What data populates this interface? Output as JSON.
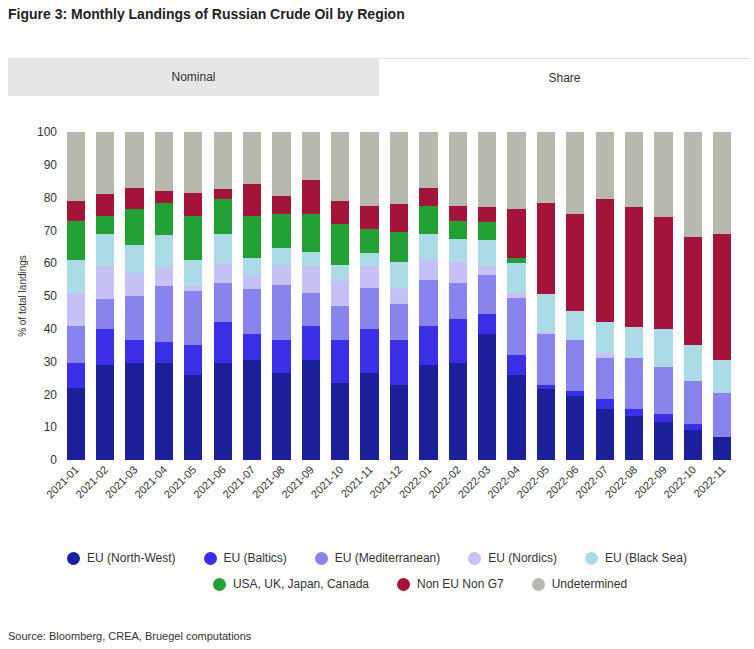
{
  "chart_data": {
    "type": "bar",
    "title": "Figure 3: Monthly Landings of Russian Crude Oil by Region",
    "tabs": [
      "Nominal",
      "Share"
    ],
    "y_label": "% of total landings",
    "source": "Source:  Bloomberg, CREA, Bruegel computations",
    "stacked": true,
    "grid": false,
    "ylim": [
      0,
      100
    ],
    "yticks": [
      0,
      10,
      20,
      30,
      40,
      50,
      60,
      70,
      80,
      90,
      100
    ],
    "categories": [
      "2021-01",
      "2021-02",
      "2021-03",
      "2021-04",
      "2021-05",
      "2021-06",
      "2021-07",
      "2021-08",
      "2021-09",
      "2021-10",
      "2021-11",
      "2021-12",
      "2022-01",
      "2022-02",
      "2022-03",
      "2022-04",
      "2022-05",
      "2022-06",
      "2022-07",
      "2022-08",
      "2022-09",
      "2022-10",
      "2022-11"
    ],
    "series": [
      {
        "name": "EU (North-West)",
        "color": "#1c1f9a",
        "values": [
          22,
          29,
          29.5,
          29.5,
          26,
          29.5,
          30.5,
          26.5,
          30.5,
          23.5,
          26.5,
          23,
          29,
          29.5,
          38.5,
          26,
          21.5,
          19.5,
          15.5,
          13.5,
          11.5,
          9,
          7
        ]
      },
      {
        "name": "EU (Baltics)",
        "color": "#3a2fe6",
        "values": [
          7.5,
          11,
          7,
          6.5,
          9,
          12.5,
          8,
          10,
          10.5,
          13,
          13.5,
          13.5,
          12,
          13.5,
          6,
          6,
          1.5,
          1.5,
          3,
          2,
          2.5,
          2,
          0
        ]
      },
      {
        "name": "EU (Mediterranean)",
        "color": "#8983ee",
        "values": [
          11.5,
          9,
          13.5,
          17,
          16.5,
          12,
          13.5,
          17,
          10,
          10.5,
          12.5,
          11,
          14,
          11,
          12,
          17.5,
          15.5,
          15.5,
          12.5,
          15.5,
          14.5,
          13,
          13.5
        ]
      },
      {
        "name": "EU (Nordics)",
        "color": "#c6c2f5",
        "values": [
          10,
          10,
          7,
          5.5,
          1.5,
          6,
          4,
          6,
          8,
          7.5,
          6.5,
          4.5,
          6,
          6.5,
          2.5,
          1.5,
          0.5,
          0.5,
          1.5,
          0,
          0,
          0,
          0
        ]
      },
      {
        "name": "EU (Black Sea)",
        "color": "#acdbe8",
        "values": [
          10,
          10,
          8.5,
          10,
          8,
          9,
          5.5,
          5,
          4.5,
          5,
          4,
          8.5,
          8,
          7,
          8,
          9,
          11.5,
          8.5,
          9.5,
          9.5,
          11.5,
          11,
          10
        ]
      },
      {
        "name": "USA, UK, Japan, Canada",
        "color": "#22a033",
        "values": [
          12,
          5.5,
          11,
          10,
          13.5,
          10.5,
          13,
          10.5,
          11.5,
          12.5,
          7.5,
          9,
          8.5,
          5.5,
          5.5,
          1.5,
          0,
          0,
          0,
          0,
          0,
          0,
          0
        ]
      },
      {
        "name": "Non EU Non G7",
        "color": "#a3133a",
        "values": [
          6,
          6.5,
          6.5,
          3.5,
          7,
          3,
          9.5,
          5.5,
          10.5,
          7,
          7,
          8.5,
          5.5,
          4.5,
          4.5,
          15,
          28,
          29.5,
          37.5,
          36.5,
          34,
          33,
          38.5
        ]
      },
      {
        "name": "Undetermined",
        "color": "#b7b8ae",
        "values": [
          21,
          19,
          17,
          18,
          18.5,
          17.5,
          16,
          19.5,
          14.5,
          21,
          22.5,
          22,
          17,
          22.5,
          23,
          23.5,
          21.5,
          25,
          20.5,
          23,
          26,
          32,
          31
        ]
      }
    ]
  }
}
